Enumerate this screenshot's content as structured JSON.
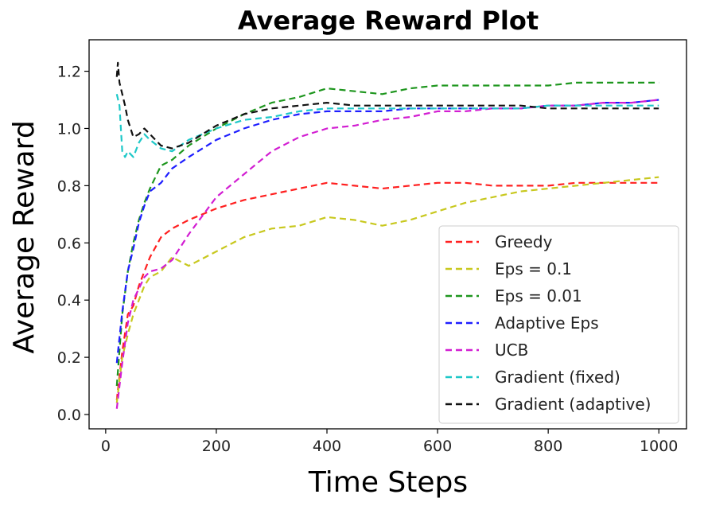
{
  "chart_data": {
    "type": "line",
    "title": "Average Reward Plot",
    "xlabel": "Time Steps",
    "ylabel": "Average Reward",
    "xlim": [
      -30,
      1050
    ],
    "ylim": [
      -0.05,
      1.31
    ],
    "xticks": [
      0,
      200,
      400,
      600,
      800,
      1000
    ],
    "yticks": [
      0.0,
      0.2,
      0.4,
      0.6,
      0.8,
      1.0,
      1.2
    ],
    "xtick_labels": [
      "0",
      "200",
      "400",
      "600",
      "800",
      "1000"
    ],
    "ytick_labels": [
      "0.0",
      "0.2",
      "0.4",
      "0.6",
      "0.8",
      "1.0",
      "1.2"
    ],
    "grid": false,
    "legend_position": "lower-right",
    "line_style": "dashed",
    "series": [
      {
        "name": "Greedy",
        "color": "#ff2020",
        "x": [
          20,
          30,
          40,
          50,
          60,
          70,
          80,
          100,
          120,
          150,
          200,
          250,
          300,
          350,
          400,
          450,
          500,
          550,
          600,
          650,
          700,
          750,
          800,
          850,
          900,
          950,
          1000
        ],
        "y": [
          0.05,
          0.22,
          0.35,
          0.38,
          0.45,
          0.5,
          0.55,
          0.62,
          0.65,
          0.68,
          0.72,
          0.75,
          0.77,
          0.79,
          0.81,
          0.8,
          0.79,
          0.8,
          0.81,
          0.81,
          0.8,
          0.8,
          0.8,
          0.81,
          0.81,
          0.81,
          0.81
        ]
      },
      {
        "name": "Eps = 0.1",
        "color": "#c8c81e",
        "x": [
          20,
          30,
          40,
          50,
          60,
          70,
          80,
          100,
          120,
          150,
          200,
          250,
          300,
          350,
          400,
          450,
          500,
          550,
          600,
          650,
          700,
          750,
          800,
          850,
          900,
          950,
          1000
        ],
        "y": [
          0.04,
          0.2,
          0.28,
          0.35,
          0.4,
          0.45,
          0.48,
          0.5,
          0.55,
          0.52,
          0.57,
          0.62,
          0.65,
          0.66,
          0.69,
          0.68,
          0.66,
          0.68,
          0.71,
          0.74,
          0.76,
          0.78,
          0.79,
          0.8,
          0.81,
          0.82,
          0.83
        ]
      },
      {
        "name": "Eps = 0.01",
        "color": "#1e961e",
        "x": [
          20,
          30,
          40,
          50,
          60,
          70,
          80,
          90,
          100,
          120,
          150,
          200,
          250,
          300,
          350,
          400,
          450,
          500,
          550,
          600,
          650,
          700,
          750,
          800,
          850,
          900,
          950,
          1000
        ],
        "y": [
          0.1,
          0.35,
          0.5,
          0.6,
          0.68,
          0.74,
          0.79,
          0.83,
          0.87,
          0.89,
          0.94,
          1.0,
          1.05,
          1.09,
          1.11,
          1.14,
          1.13,
          1.12,
          1.14,
          1.15,
          1.15,
          1.15,
          1.15,
          1.15,
          1.16,
          1.16,
          1.16,
          1.16
        ]
      },
      {
        "name": "Adaptive Eps",
        "color": "#1e1eff",
        "x": [
          20,
          30,
          40,
          50,
          60,
          70,
          80,
          100,
          120,
          150,
          200,
          250,
          300,
          350,
          400,
          450,
          500,
          550,
          600,
          650,
          700,
          750,
          800,
          850,
          900,
          950,
          1000
        ],
        "y": [
          0.18,
          0.36,
          0.5,
          0.58,
          0.67,
          0.73,
          0.78,
          0.81,
          0.86,
          0.9,
          0.96,
          1.0,
          1.03,
          1.05,
          1.06,
          1.06,
          1.06,
          1.07,
          1.07,
          1.07,
          1.07,
          1.07,
          1.08,
          1.08,
          1.09,
          1.09,
          1.1
        ]
      },
      {
        "name": "UCB",
        "color": "#d21ed2",
        "x": [
          20,
          30,
          40,
          50,
          60,
          70,
          80,
          100,
          120,
          150,
          200,
          250,
          300,
          350,
          400,
          450,
          500,
          550,
          600,
          650,
          700,
          750,
          800,
          850,
          900,
          950,
          1000
        ],
        "y": [
          0.02,
          0.18,
          0.32,
          0.4,
          0.44,
          0.48,
          0.5,
          0.51,
          0.54,
          0.63,
          0.76,
          0.84,
          0.92,
          0.97,
          1.0,
          1.01,
          1.03,
          1.04,
          1.06,
          1.06,
          1.07,
          1.07,
          1.08,
          1.08,
          1.09,
          1.09,
          1.1
        ]
      },
      {
        "name": "Gradient (fixed)",
        "color": "#1ec8c8",
        "x": [
          20,
          25,
          30,
          35,
          40,
          50,
          60,
          70,
          80,
          100,
          120,
          150,
          200,
          250,
          300,
          350,
          400,
          450,
          500,
          550,
          600,
          650,
          700,
          750,
          800,
          850,
          900,
          950,
          1000
        ],
        "y": [
          1.12,
          1.08,
          0.92,
          0.9,
          0.92,
          0.9,
          0.95,
          0.98,
          0.96,
          0.93,
          0.92,
          0.96,
          1.0,
          1.03,
          1.04,
          1.06,
          1.07,
          1.07,
          1.07,
          1.07,
          1.07,
          1.07,
          1.07,
          1.07,
          1.08,
          1.08,
          1.08,
          1.08,
          1.08
        ]
      },
      {
        "name": "Gradient (adaptive)",
        "color": "#111111",
        "x": [
          20,
          22,
          25,
          30,
          35,
          40,
          50,
          60,
          70,
          80,
          100,
          120,
          150,
          200,
          250,
          300,
          350,
          400,
          450,
          500,
          550,
          600,
          650,
          700,
          750,
          800,
          850,
          900,
          950,
          1000
        ],
        "y": [
          1.18,
          1.23,
          1.16,
          1.12,
          1.08,
          1.03,
          0.97,
          0.98,
          1.0,
          0.98,
          0.94,
          0.93,
          0.95,
          1.01,
          1.05,
          1.07,
          1.08,
          1.09,
          1.08,
          1.08,
          1.08,
          1.08,
          1.08,
          1.08,
          1.08,
          1.07,
          1.07,
          1.07,
          1.07,
          1.07
        ]
      }
    ]
  }
}
